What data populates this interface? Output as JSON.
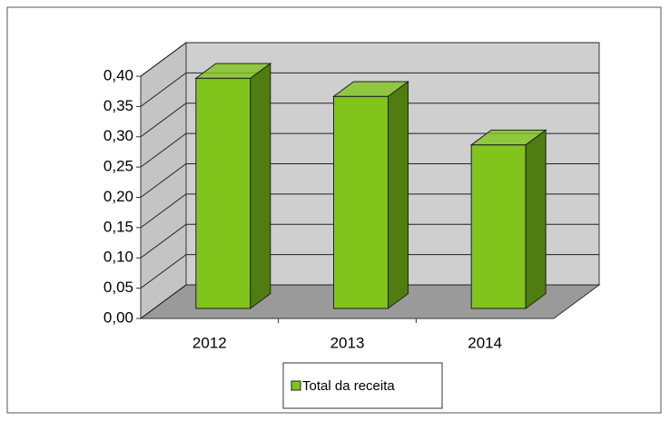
{
  "chart_data": {
    "type": "bar3d",
    "categories": [
      "2012",
      "2013",
      "2014"
    ],
    "series": [
      {
        "name": "Total da receita",
        "color": "#80c41c",
        "values": [
          0.38,
          0.35,
          0.27
        ]
      }
    ],
    "ylim": [
      0,
      0.4
    ],
    "yticks": [
      {
        "value": 0,
        "label": "0,00"
      },
      {
        "value": 0.05,
        "label": "0,05"
      },
      {
        "value": 0.1,
        "label": "0,10"
      },
      {
        "value": 0.15,
        "label": "0,15"
      },
      {
        "value": 0.2,
        "label": "0,20"
      },
      {
        "value": 0.25,
        "label": "0,25"
      },
      {
        "value": 0.3,
        "label": "0,30"
      },
      {
        "value": 0.35,
        "label": "0,35"
      },
      {
        "value": 0.4,
        "label": "0,40"
      }
    ],
    "grid": true,
    "legend": "bottom"
  }
}
